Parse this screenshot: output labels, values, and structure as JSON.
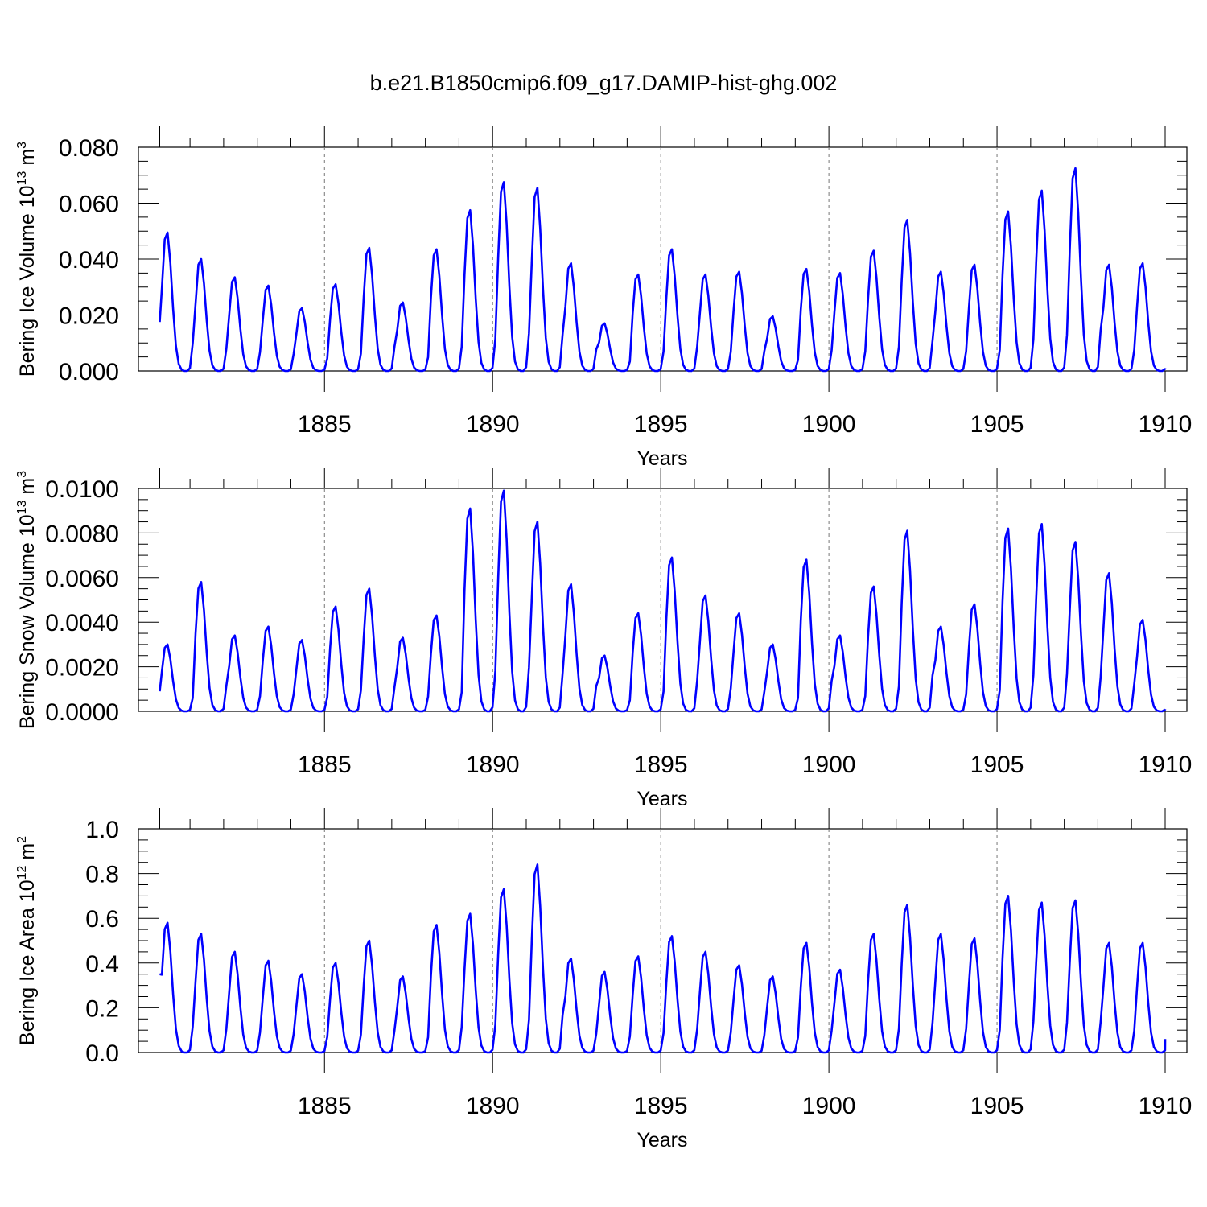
{
  "title": "b.e21.B1850cmip6.f09_g17.DAMIP-hist-ghg.002",
  "chart_data": [
    {
      "type": "line",
      "name": "ice-volume",
      "ylabel": {
        "main": "Bering Ice Volume 10",
        "exp": "13",
        "unit": " m",
        "unit_exp": "3"
      },
      "xlabel": "Years",
      "xlim": [
        1880,
        1910
      ],
      "x_ticks": [
        1885,
        1890,
        1895,
        1900,
        1905,
        1910
      ],
      "x_tick_labels": [
        "1885",
        "1890",
        "1895",
        "1900",
        "1905",
        "1910"
      ],
      "ylim": [
        0,
        0.08
      ],
      "y_ticks": [
        0,
        0.02,
        0.04,
        0.06,
        0.08
      ],
      "y_tick_labels": [
        "0.000",
        "0.020",
        "0.040",
        "0.060",
        "0.080"
      ],
      "y_minor_step": 0.005,
      "line_color": "#0000ff",
      "series_name": "Bering Ice Volume",
      "peaks": [
        0.0495,
        0.04,
        0.0335,
        0.0305,
        0.0225,
        0.031,
        0.044,
        0.0245,
        0.0435,
        0.0575,
        0.0675,
        0.0655,
        0.0385,
        0.017,
        0.0345,
        0.0435,
        0.0345,
        0.0355,
        0.0195,
        0.0365,
        0.035,
        0.043,
        0.054,
        0.0355,
        0.038,
        0.057,
        0.0645,
        0.0725,
        0.038,
        0.0385
      ],
      "start_value": 0.0175,
      "end_value": 0.001
    },
    {
      "type": "line",
      "name": "snow-volume",
      "ylabel": {
        "main": "Bering Snow Volume 10",
        "exp": "13",
        "unit": " m",
        "unit_exp": "3"
      },
      "xlabel": "Years",
      "xlim": [
        1880,
        1910
      ],
      "x_ticks": [
        1885,
        1890,
        1895,
        1900,
        1905,
        1910
      ],
      "x_tick_labels": [
        "1885",
        "1890",
        "1895",
        "1900",
        "1905",
        "1910"
      ],
      "ylim": [
        0,
        0.01
      ],
      "y_ticks": [
        0,
        0.002,
        0.004,
        0.006,
        0.008,
        0.01
      ],
      "y_tick_labels": [
        "0.0000",
        "0.0020",
        "0.0040",
        "0.0060",
        "0.0080",
        "0.0100"
      ],
      "y_minor_step": 0.0005,
      "line_color": "#0000ff",
      "series_name": "Bering Snow Volume",
      "peaks": [
        0.003,
        0.0058,
        0.0034,
        0.0038,
        0.0032,
        0.0047,
        0.0055,
        0.0033,
        0.0043,
        0.0091,
        0.0099,
        0.0085,
        0.0057,
        0.0025,
        0.0044,
        0.0069,
        0.0052,
        0.0044,
        0.003,
        0.0068,
        0.0034,
        0.0056,
        0.0081,
        0.0038,
        0.0048,
        0.0082,
        0.0084,
        0.0076,
        0.0062,
        0.0041
      ],
      "start_value": 0.0009,
      "end_value": 0.0001
    },
    {
      "type": "line",
      "name": "ice-area",
      "ylabel": {
        "main": "Bering Ice Area 10",
        "exp": "12",
        "unit": " m",
        "unit_exp": "2"
      },
      "xlabel": "Years",
      "xlim": [
        1880,
        1910
      ],
      "x_ticks": [
        1885,
        1890,
        1895,
        1900,
        1905,
        1910
      ],
      "x_tick_labels": [
        "1885",
        "1890",
        "1895",
        "1900",
        "1905",
        "1910"
      ],
      "ylim": [
        0,
        1.0
      ],
      "y_ticks": [
        0,
        0.2,
        0.4,
        0.6,
        0.8,
        1.0
      ],
      "y_tick_labels": [
        "0.0",
        "0.2",
        "0.4",
        "0.6",
        "0.8",
        "1.0"
      ],
      "y_minor_step": 0.05,
      "line_color": "#0000ff",
      "series_name": "Bering Ice Area",
      "peaks": [
        0.58,
        0.53,
        0.45,
        0.41,
        0.35,
        0.4,
        0.5,
        0.34,
        0.57,
        0.62,
        0.73,
        0.84,
        0.42,
        0.36,
        0.43,
        0.52,
        0.45,
        0.39,
        0.34,
        0.49,
        0.37,
        0.53,
        0.66,
        0.53,
        0.51,
        0.7,
        0.67,
        0.68,
        0.49,
        0.49
      ],
      "start_value": 0.35,
      "end_value": 0.06
    }
  ]
}
